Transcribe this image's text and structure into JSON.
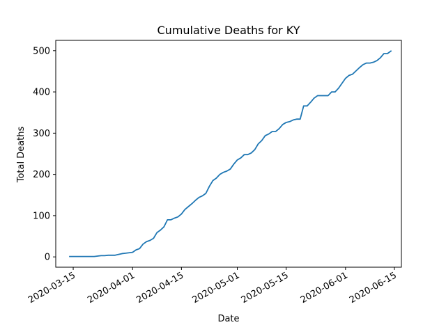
{
  "chart_data": {
    "type": "line",
    "title": "Cumulative Deaths for KY",
    "xlabel": "Date",
    "ylabel": "Total Deaths",
    "x_range": [
      "2020-03-10",
      "2020-06-17"
    ],
    "ylim": [
      -25,
      525
    ],
    "grid": false,
    "line_color": "#1f77b4",
    "x_ticks": [
      "2020-03-15",
      "2020-04-01",
      "2020-04-15",
      "2020-05-01",
      "2020-05-15",
      "2020-06-01",
      "2020-06-15"
    ],
    "y_ticks": [
      0,
      100,
      200,
      300,
      400,
      500
    ],
    "series": [
      {
        "points": [
          [
            "2020-03-14",
            1
          ],
          [
            "2020-03-16",
            1
          ],
          [
            "2020-03-18",
            1
          ],
          [
            "2020-03-20",
            1
          ],
          [
            "2020-03-21",
            1
          ],
          [
            "2020-03-22",
            2
          ],
          [
            "2020-03-23",
            3
          ],
          [
            "2020-03-24",
            3
          ],
          [
            "2020-03-25",
            4
          ],
          [
            "2020-03-26",
            4
          ],
          [
            "2020-03-27",
            4
          ],
          [
            "2020-03-28",
            6
          ],
          [
            "2020-03-29",
            8
          ],
          [
            "2020-03-30",
            9
          ],
          [
            "2020-03-31",
            10
          ],
          [
            "2020-04-01",
            11
          ],
          [
            "2020-04-02",
            17
          ],
          [
            "2020-04-03",
            20
          ],
          [
            "2020-04-04",
            31
          ],
          [
            "2020-04-05",
            37
          ],
          [
            "2020-04-06",
            40
          ],
          [
            "2020-04-07",
            45
          ],
          [
            "2020-04-08",
            59
          ],
          [
            "2020-04-09",
            65
          ],
          [
            "2020-04-10",
            73
          ],
          [
            "2020-04-11",
            90
          ],
          [
            "2020-04-12",
            90
          ],
          [
            "2020-04-13",
            94
          ],
          [
            "2020-04-14",
            97
          ],
          [
            "2020-04-15",
            104
          ],
          [
            "2020-04-16",
            115
          ],
          [
            "2020-04-17",
            122
          ],
          [
            "2020-04-18",
            129
          ],
          [
            "2020-04-19",
            137
          ],
          [
            "2020-04-20",
            144
          ],
          [
            "2020-04-21",
            148
          ],
          [
            "2020-04-22",
            154
          ],
          [
            "2020-04-23",
            171
          ],
          [
            "2020-04-24",
            185
          ],
          [
            "2020-04-25",
            191
          ],
          [
            "2020-04-26",
            200
          ],
          [
            "2020-04-27",
            205
          ],
          [
            "2020-04-28",
            208
          ],
          [
            "2020-04-29",
            213
          ],
          [
            "2020-04-30",
            225
          ],
          [
            "2020-05-01",
            235
          ],
          [
            "2020-05-02",
            240
          ],
          [
            "2020-05-03",
            248
          ],
          [
            "2020-05-04",
            248
          ],
          [
            "2020-05-05",
            252
          ],
          [
            "2020-05-06",
            260
          ],
          [
            "2020-05-07",
            274
          ],
          [
            "2020-05-08",
            282
          ],
          [
            "2020-05-09",
            294
          ],
          [
            "2020-05-10",
            298
          ],
          [
            "2020-05-11",
            304
          ],
          [
            "2020-05-12",
            304
          ],
          [
            "2020-05-13",
            311
          ],
          [
            "2020-05-14",
            321
          ],
          [
            "2020-05-15",
            326
          ],
          [
            "2020-05-16",
            328
          ],
          [
            "2020-05-17",
            332
          ],
          [
            "2020-05-18",
            334
          ],
          [
            "2020-05-19",
            334
          ],
          [
            "2020-05-20",
            366
          ],
          [
            "2020-05-21",
            366
          ],
          [
            "2020-05-22",
            375
          ],
          [
            "2020-05-23",
            385
          ],
          [
            "2020-05-24",
            391
          ],
          [
            "2020-05-25",
            391
          ],
          [
            "2020-05-26",
            391
          ],
          [
            "2020-05-27",
            391
          ],
          [
            "2020-05-28",
            400
          ],
          [
            "2020-05-29",
            400
          ],
          [
            "2020-05-30",
            409
          ],
          [
            "2020-05-31",
            421
          ],
          [
            "2020-06-01",
            433
          ],
          [
            "2020-06-02",
            440
          ],
          [
            "2020-06-03",
            443
          ],
          [
            "2020-06-04",
            451
          ],
          [
            "2020-06-05",
            459
          ],
          [
            "2020-06-06",
            466
          ],
          [
            "2020-06-07",
            470
          ],
          [
            "2020-06-08",
            470
          ],
          [
            "2020-06-09",
            472
          ],
          [
            "2020-06-10",
            476
          ],
          [
            "2020-06-11",
            483
          ],
          [
            "2020-06-12",
            493
          ],
          [
            "2020-06-13",
            493
          ],
          [
            "2020-06-14",
            499
          ]
        ]
      }
    ]
  }
}
